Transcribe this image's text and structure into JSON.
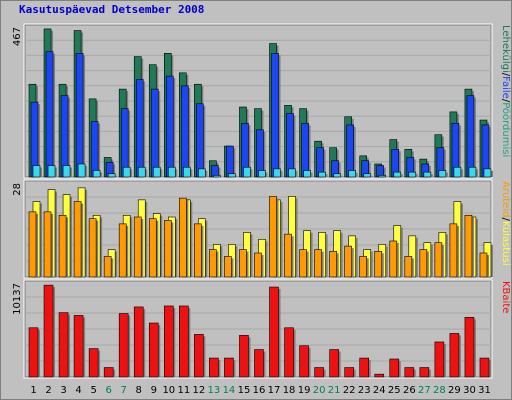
{
  "chart_data": {
    "type": "bar",
    "title": "Kasutuspäevad Detsember 2008",
    "categories": [
      "1",
      "2",
      "3",
      "4",
      "5",
      "6",
      "7",
      "8",
      "9",
      "10",
      "11",
      "12",
      "13",
      "14",
      "15",
      "16",
      "17",
      "18",
      "19",
      "20",
      "21",
      "22",
      "23",
      "24",
      "25",
      "26",
      "27",
      "28",
      "29",
      "30",
      "31"
    ],
    "weekend_days": [
      "6",
      "7",
      "13",
      "14",
      "20",
      "21",
      "27",
      "28"
    ],
    "colors": {
      "page_hits": "#1e7a57",
      "files": "#1c46f0",
      "visits": "#38d8ee",
      "sites": "#ff9a00",
      "visits_panel": "#ffff40",
      "kbytes": "#ee1111",
      "weekend_label": "#00805a",
      "weekday_label": "#000000"
    },
    "panels": [
      {
        "id": "top",
        "ymax_label": "467",
        "ymax": 467,
        "legend": [
          {
            "text": "Lehekülgi",
            "color": "#1e7a57"
          },
          {
            "text": "Faile",
            "color": "#1c46f0"
          },
          {
            "text": "Pöördumisi",
            "color": "#20a080"
          }
        ],
        "series": [
          {
            "name": "Lehekülgi",
            "values": [
              285,
              455,
              285,
              450,
              240,
              60,
              270,
              370,
              345,
              380,
              320,
              285,
              50,
              95,
              215,
              210,
              410,
              220,
              210,
              110,
              90,
              185,
              65,
              40,
              115,
              85,
              55,
              130,
              200,
              270,
              175
            ]
          },
          {
            "name": "Faile",
            "values": [
              230,
              385,
              250,
              380,
              170,
              45,
              210,
              300,
              270,
              310,
              280,
              225,
              35,
              95,
              165,
              145,
              380,
              195,
              165,
              90,
              50,
              160,
              50,
              35,
              85,
              60,
              40,
              90,
              165,
              250,
              160
            ]
          },
          {
            "name": "Pöördumisi",
            "values": [
              35,
              35,
              35,
              40,
              20,
              10,
              30,
              30,
              30,
              30,
              30,
              25,
              5,
              10,
              30,
              20,
              25,
              25,
              20,
              15,
              10,
              20,
              10,
              5,
              15,
              15,
              15,
              20,
              30,
              30,
              25
            ]
          }
        ]
      },
      {
        "id": "middle",
        "ymax_label": "28",
        "ymax": 28,
        "legend": [
          {
            "text": "Aruteid",
            "color": "#ff9a00"
          },
          {
            "text": "Külastusi",
            "color": "#ffff40"
          }
        ],
        "series": [
          {
            "name": "Aruteid",
            "values": [
              19.0,
              19.0,
              18.0,
              22.0,
              17.0,
              6.0,
              15.5,
              17.5,
              17.0,
              16.5,
              23.0,
              15.5,
              8.0,
              6.0,
              8.0,
              7.0,
              23.5,
              12.5,
              8.0,
              8.0,
              7.5,
              9.0,
              6.0,
              7.5,
              10.5,
              6.0,
              8.0,
              10.0,
              15.5,
              18.0,
              7.0
            ]
          },
          {
            "name": "Külastusi",
            "values": [
              22.0,
              25.5,
              24.0,
              26.0,
              18.0,
              8.0,
              18.0,
              22.5,
              18.5,
              17.5,
              22.5,
              17.0,
              9.5,
              9.5,
              13.0,
              11.0,
              22.5,
              23.5,
              13.5,
              13.0,
              13.5,
              12.0,
              8.0,
              9.5,
              15.0,
              12.0,
              10.0,
              13.0,
              22.0,
              17.5,
              10.0
            ]
          }
        ]
      },
      {
        "id": "bottom",
        "ymax_label": "10137",
        "ymax": 10137,
        "legend": [
          {
            "text": "KBaite",
            "color": "#ee1111"
          }
        ],
        "series": [
          {
            "name": "KBaite",
            "values": [
              5200,
              9700,
              6800,
              6500,
              3000,
              1000,
              6700,
              7400,
              5700,
              7500,
              7500,
              4500,
              2000,
              2000,
              4400,
              2900,
              9500,
              5200,
              3300,
              1000,
              2900,
              1000,
              2000,
              300,
              1900,
              1000,
              1000,
              3700,
              4600,
              6300,
              2000
            ]
          }
        ]
      }
    ]
  }
}
